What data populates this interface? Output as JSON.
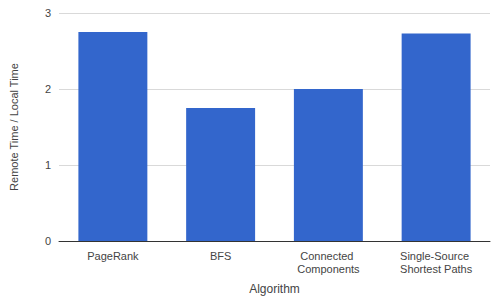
{
  "chart_data": {
    "type": "bar",
    "x_label": "Algorithm",
    "y_label": "Remote Time / Local Time",
    "categories": [
      "PageRank",
      "BFS",
      "Connected Components",
      "Single-Source Shortest Paths"
    ],
    "values": [
      2.75,
      1.75,
      2.0,
      2.73
    ],
    "color": "#3366cc",
    "ylim": [
      0,
      3
    ],
    "yticks": [
      0,
      1,
      2,
      3
    ],
    "grid": true
  }
}
